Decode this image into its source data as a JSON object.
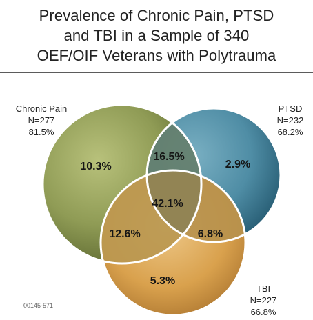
{
  "title_lines": [
    "Prevalence of Chronic Pain, PTSD",
    "and TBI in a Sample of 340",
    "OEF/OIF Veterans with Polytrauma"
  ],
  "sets": {
    "chronic_pain": {
      "name": "Chronic Pain",
      "n": "N=277",
      "percent": "81.5%",
      "color": "#8f9b55"
    },
    "ptsd": {
      "name": "PTSD",
      "n": "N=232",
      "percent": "68.2%",
      "color": "#4f8da5"
    },
    "tbi": {
      "name": "TBI",
      "n": "N=227",
      "percent": "66.8%",
      "color": "#d9a14d"
    }
  },
  "regions": {
    "chronic_only": "10.3%",
    "chronic_ptsd": "16.5%",
    "ptsd_only": "2.9%",
    "all_three": "42.1%",
    "chronic_tbi": "12.6%",
    "ptsd_tbi": "6.8%",
    "tbi_only": "5.3%"
  },
  "code": "00145-571"
}
